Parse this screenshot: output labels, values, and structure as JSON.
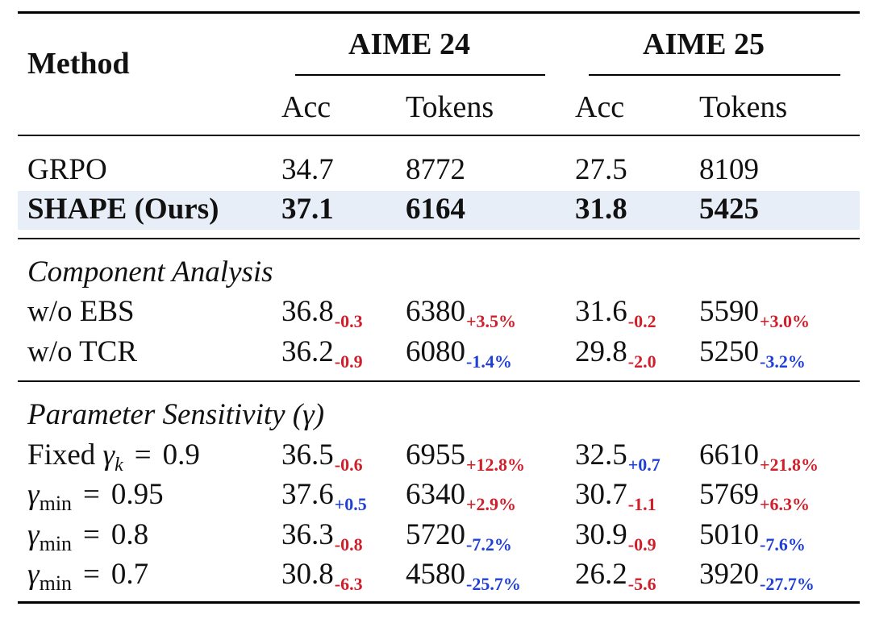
{
  "header": {
    "method": "Method",
    "groups": [
      "AIME 24",
      "AIME 25"
    ],
    "subcols": [
      "Acc",
      "Tokens",
      "Acc",
      "Tokens"
    ]
  },
  "main_rows": [
    {
      "label": "GRPO",
      "cells": [
        "34.7",
        "8772",
        "27.5",
        "8109"
      ]
    },
    {
      "label": "SHAPE (Ours)",
      "cells": [
        "37.1",
        "6164",
        "31.8",
        "5425"
      ]
    }
  ],
  "component": {
    "title": "Component Analysis",
    "rows": [
      {
        "label": "w/o EBS",
        "cells": [
          {
            "v": "36.8",
            "d": "-0.3"
          },
          {
            "v": "6380",
            "d": "+3.5%"
          },
          {
            "v": "31.6",
            "d": "-0.2"
          },
          {
            "v": "5590",
            "d": "+3.0%"
          }
        ]
      },
      {
        "label": "w/o TCR",
        "cells": [
          {
            "v": "36.2",
            "d": "-0.9"
          },
          {
            "v": "6080",
            "d": "-1.4%"
          },
          {
            "v": "29.8",
            "d": "-2.0"
          },
          {
            "v": "5250",
            "d": "-3.2%"
          }
        ]
      }
    ]
  },
  "sensitivity": {
    "title": "Parameter Sensitivity (γ)",
    "rows": [
      {
        "label": {
          "prefix": "Fixed ",
          "sym": "γ",
          "sub": "k",
          "eq": "=",
          "val": "0.9"
        },
        "cells": [
          {
            "v": "36.5",
            "d": "-0.6"
          },
          {
            "v": "6955",
            "d": "+12.8%"
          },
          {
            "v": "32.5",
            "d": "+0.7"
          },
          {
            "v": "6610",
            "d": "+21.8%"
          }
        ]
      },
      {
        "label": {
          "prefix": "",
          "sym": "γ",
          "sub": "min",
          "eq": "=",
          "val": "0.95"
        },
        "cells": [
          {
            "v": "37.6",
            "d": "+0.5"
          },
          {
            "v": "6340",
            "d": "+2.9%"
          },
          {
            "v": "30.7",
            "d": "-1.1"
          },
          {
            "v": "5769",
            "d": "+6.3%"
          }
        ]
      },
      {
        "label": {
          "prefix": "",
          "sym": "γ",
          "sub": "min",
          "eq": "=",
          "val": "0.8"
        },
        "cells": [
          {
            "v": "36.3",
            "d": "-0.8"
          },
          {
            "v": "5720",
            "d": "-7.2%"
          },
          {
            "v": "30.9",
            "d": "-0.9"
          },
          {
            "v": "5010",
            "d": "-7.6%"
          }
        ]
      },
      {
        "label": {
          "prefix": "",
          "sym": "γ",
          "sub": "min",
          "eq": "=",
          "val": "0.7"
        },
        "cells": [
          {
            "v": "30.8",
            "d": "-6.3"
          },
          {
            "v": "4580",
            "d": "-25.7%"
          },
          {
            "v": "26.2",
            "d": "-5.6"
          },
          {
            "v": "3920",
            "d": "-27.7%"
          }
        ]
      }
    ]
  },
  "colors": {
    "improve": "#1f3fd6",
    "degrade": "#d01f2a",
    "highlight": "#e8eef8"
  }
}
